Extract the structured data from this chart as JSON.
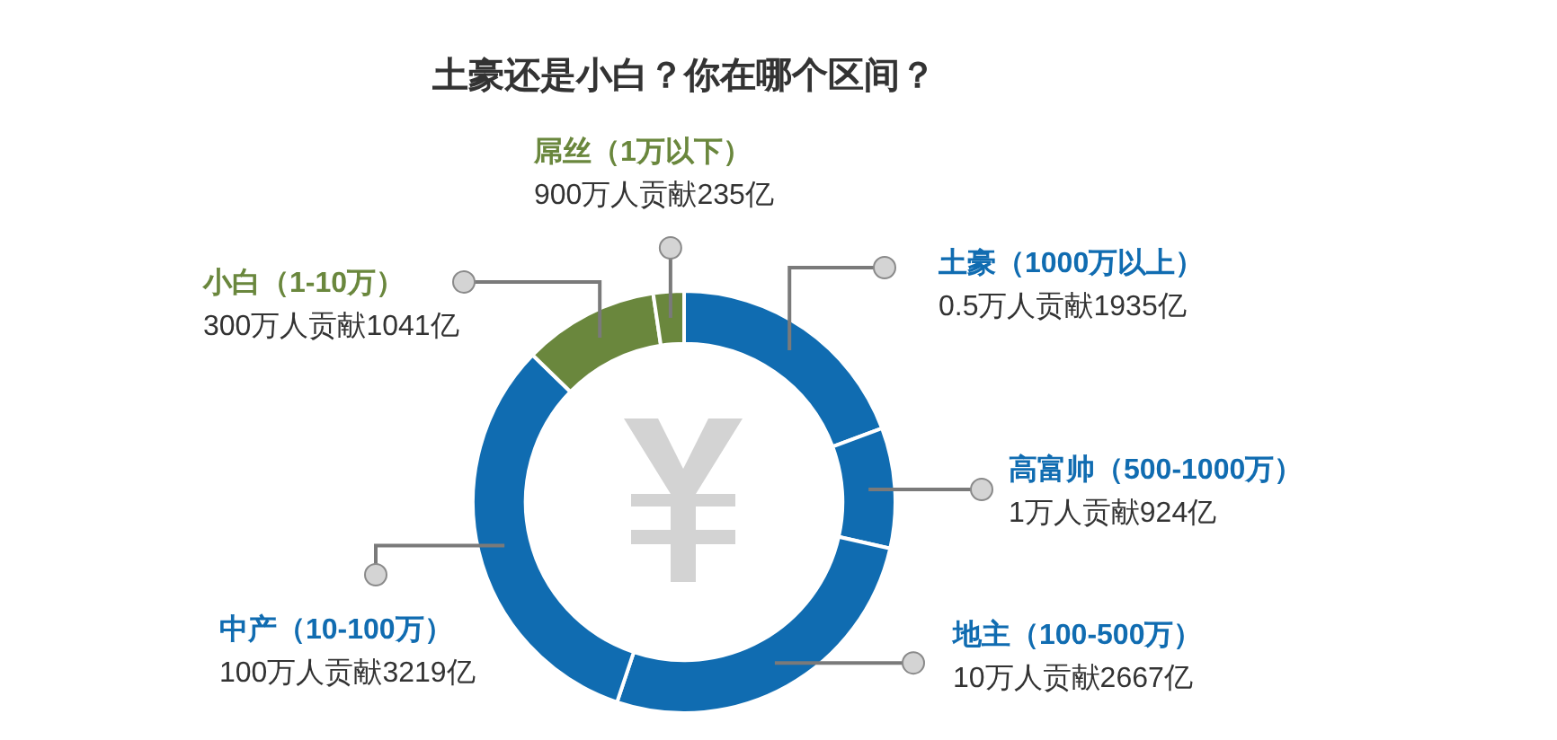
{
  "chart_data": {
    "type": "donut",
    "title": "土豪还是小白？你在哪个区间？",
    "categories": [
      "土豪（1000万以上）",
      "高富帅（500-1000万）",
      "地主（100-500万）",
      "中产（10-100万）",
      "小白（1-10万）",
      "屌丝（1万以下）"
    ],
    "values": [
      1935,
      924,
      2667,
      3219,
      1041,
      235
    ],
    "colors": [
      "#106cb1",
      "#106cb1",
      "#106cb1",
      "#106cb1",
      "#6a873d",
      "#6a873d"
    ],
    "value_labels": [
      "0.5万人贡献1935亿",
      "1万人贡献924亿",
      "10万人贡献2667亿",
      "100万人贡献3219亿",
      "300万人贡献1041亿",
      "900万人贡献235亿"
    ]
  }
}
